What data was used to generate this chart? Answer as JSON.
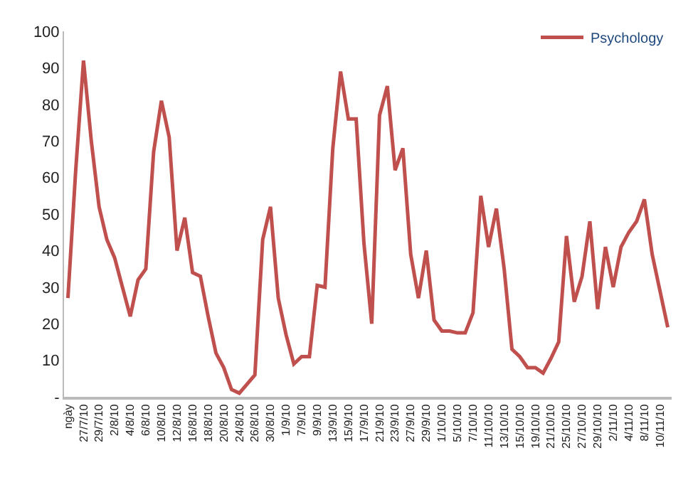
{
  "chart_data": {
    "type": "line",
    "categories": [
      "ngày",
      null,
      "27/7/10",
      null,
      "29/7/10",
      null,
      "2/8/10",
      null,
      "4/8/10",
      null,
      "6/8/10",
      null,
      "10/8/10",
      null,
      "12/8/10",
      null,
      "16/8/10",
      null,
      "18/8/10",
      null,
      "20/8/10",
      null,
      "24/8/10",
      null,
      "26/8/10",
      null,
      "30/8/10",
      null,
      "1/9/10",
      null,
      "7/9/10",
      null,
      "9/9/10",
      null,
      "13/9/10",
      null,
      "15/9/10",
      null,
      "17/9/10",
      null,
      "21/9/10",
      null,
      "23/9/10",
      null,
      "27/9/10",
      null,
      "29/9/10",
      null,
      "1/10/10",
      null,
      "5/10/10",
      null,
      "7/10/10",
      null,
      "11/10/10",
      null,
      "13/10/10",
      null,
      "15/10/10",
      null,
      "19/10/10",
      null,
      "21/10/10",
      null,
      "25/10/10",
      null,
      "27/10/10",
      null,
      "29/10/10",
      null,
      "2/11/10",
      null,
      "4/11/10",
      null,
      "8/11/10",
      null,
      "10/11/10",
      null
    ],
    "series": [
      {
        "name": "Psychology",
        "color": "#c0504d",
        "values": [
          27,
          62,
          92,
          70,
          52,
          43,
          38,
          30,
          22,
          32,
          35,
          67,
          81,
          71,
          40,
          49,
          34,
          33,
          22,
          12,
          8,
          2,
          1,
          3.5,
          6,
          43,
          52,
          27,
          17,
          9,
          11,
          11,
          30.5,
          30,
          68,
          89,
          76,
          76,
          42,
          20,
          77,
          85,
          62,
          68,
          39,
          27,
          40,
          21,
          18,
          18,
          17.5,
          17.5,
          23,
          55,
          41,
          51.5,
          35,
          13,
          11,
          8,
          8,
          6.5,
          10.5,
          15,
          44,
          26,
          33,
          48,
          24,
          41,
          30,
          41,
          45,
          48,
          54,
          39,
          29,
          19
        ]
      }
    ],
    "ylim": [
      0,
      100
    ],
    "yticks": [
      {
        "value": 0,
        "label": "-"
      },
      10,
      20,
      30,
      40,
      50,
      60,
      70,
      80,
      90,
      100
    ],
    "legend": "top right",
    "marker": "none",
    "line_style": "solid"
  }
}
